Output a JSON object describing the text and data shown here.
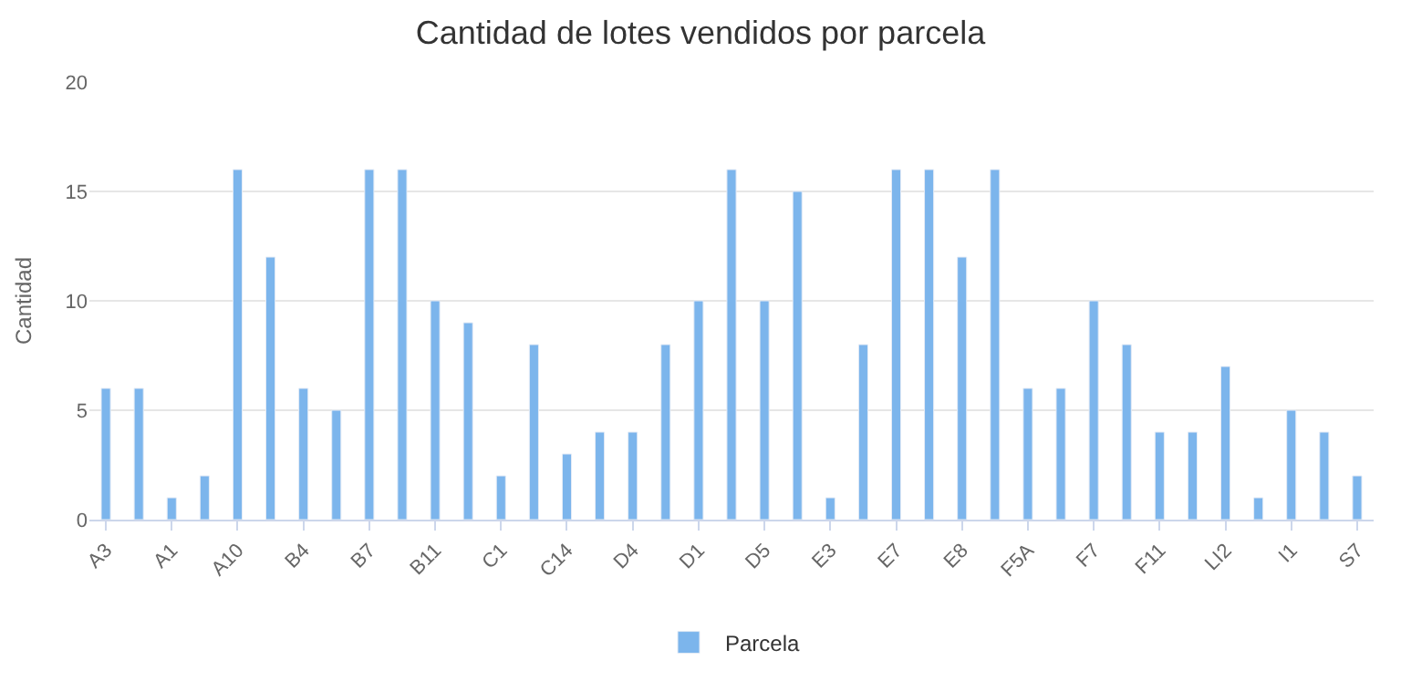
{
  "chart_data": {
    "type": "bar",
    "title": "Cantidad de lotes vendidos por parcela",
    "ylabel": "Cantidad",
    "categories": [
      "A3",
      null,
      "A1",
      null,
      "A10",
      null,
      "B4",
      null,
      "B7",
      null,
      "B11",
      null,
      "C1",
      null,
      "C14",
      null,
      "D4",
      null,
      "D1",
      null,
      "D5",
      null,
      "E3",
      null,
      "E7",
      null,
      "E8",
      null,
      "F5A",
      null,
      "F7",
      null,
      "F11",
      null,
      "LI2",
      null,
      "I1",
      null,
      "S7"
    ],
    "series": [
      {
        "name": "Parcela",
        "color": "#7cb5ec",
        "values": [
          6,
          6,
          1,
          2,
          16,
          12,
          6,
          5,
          16,
          16,
          10,
          9,
          2,
          8,
          3,
          4,
          4,
          8,
          10,
          16,
          10,
          15,
          1,
          8,
          16,
          16,
          12,
          16,
          6,
          6,
          10,
          8,
          4,
          4,
          7,
          1,
          5,
          4,
          2
        ]
      }
    ],
    "ylim": [
      0,
      20
    ],
    "yticks": [
      0,
      5,
      10,
      15,
      20
    ],
    "grid": "y",
    "legend": "bottom"
  }
}
